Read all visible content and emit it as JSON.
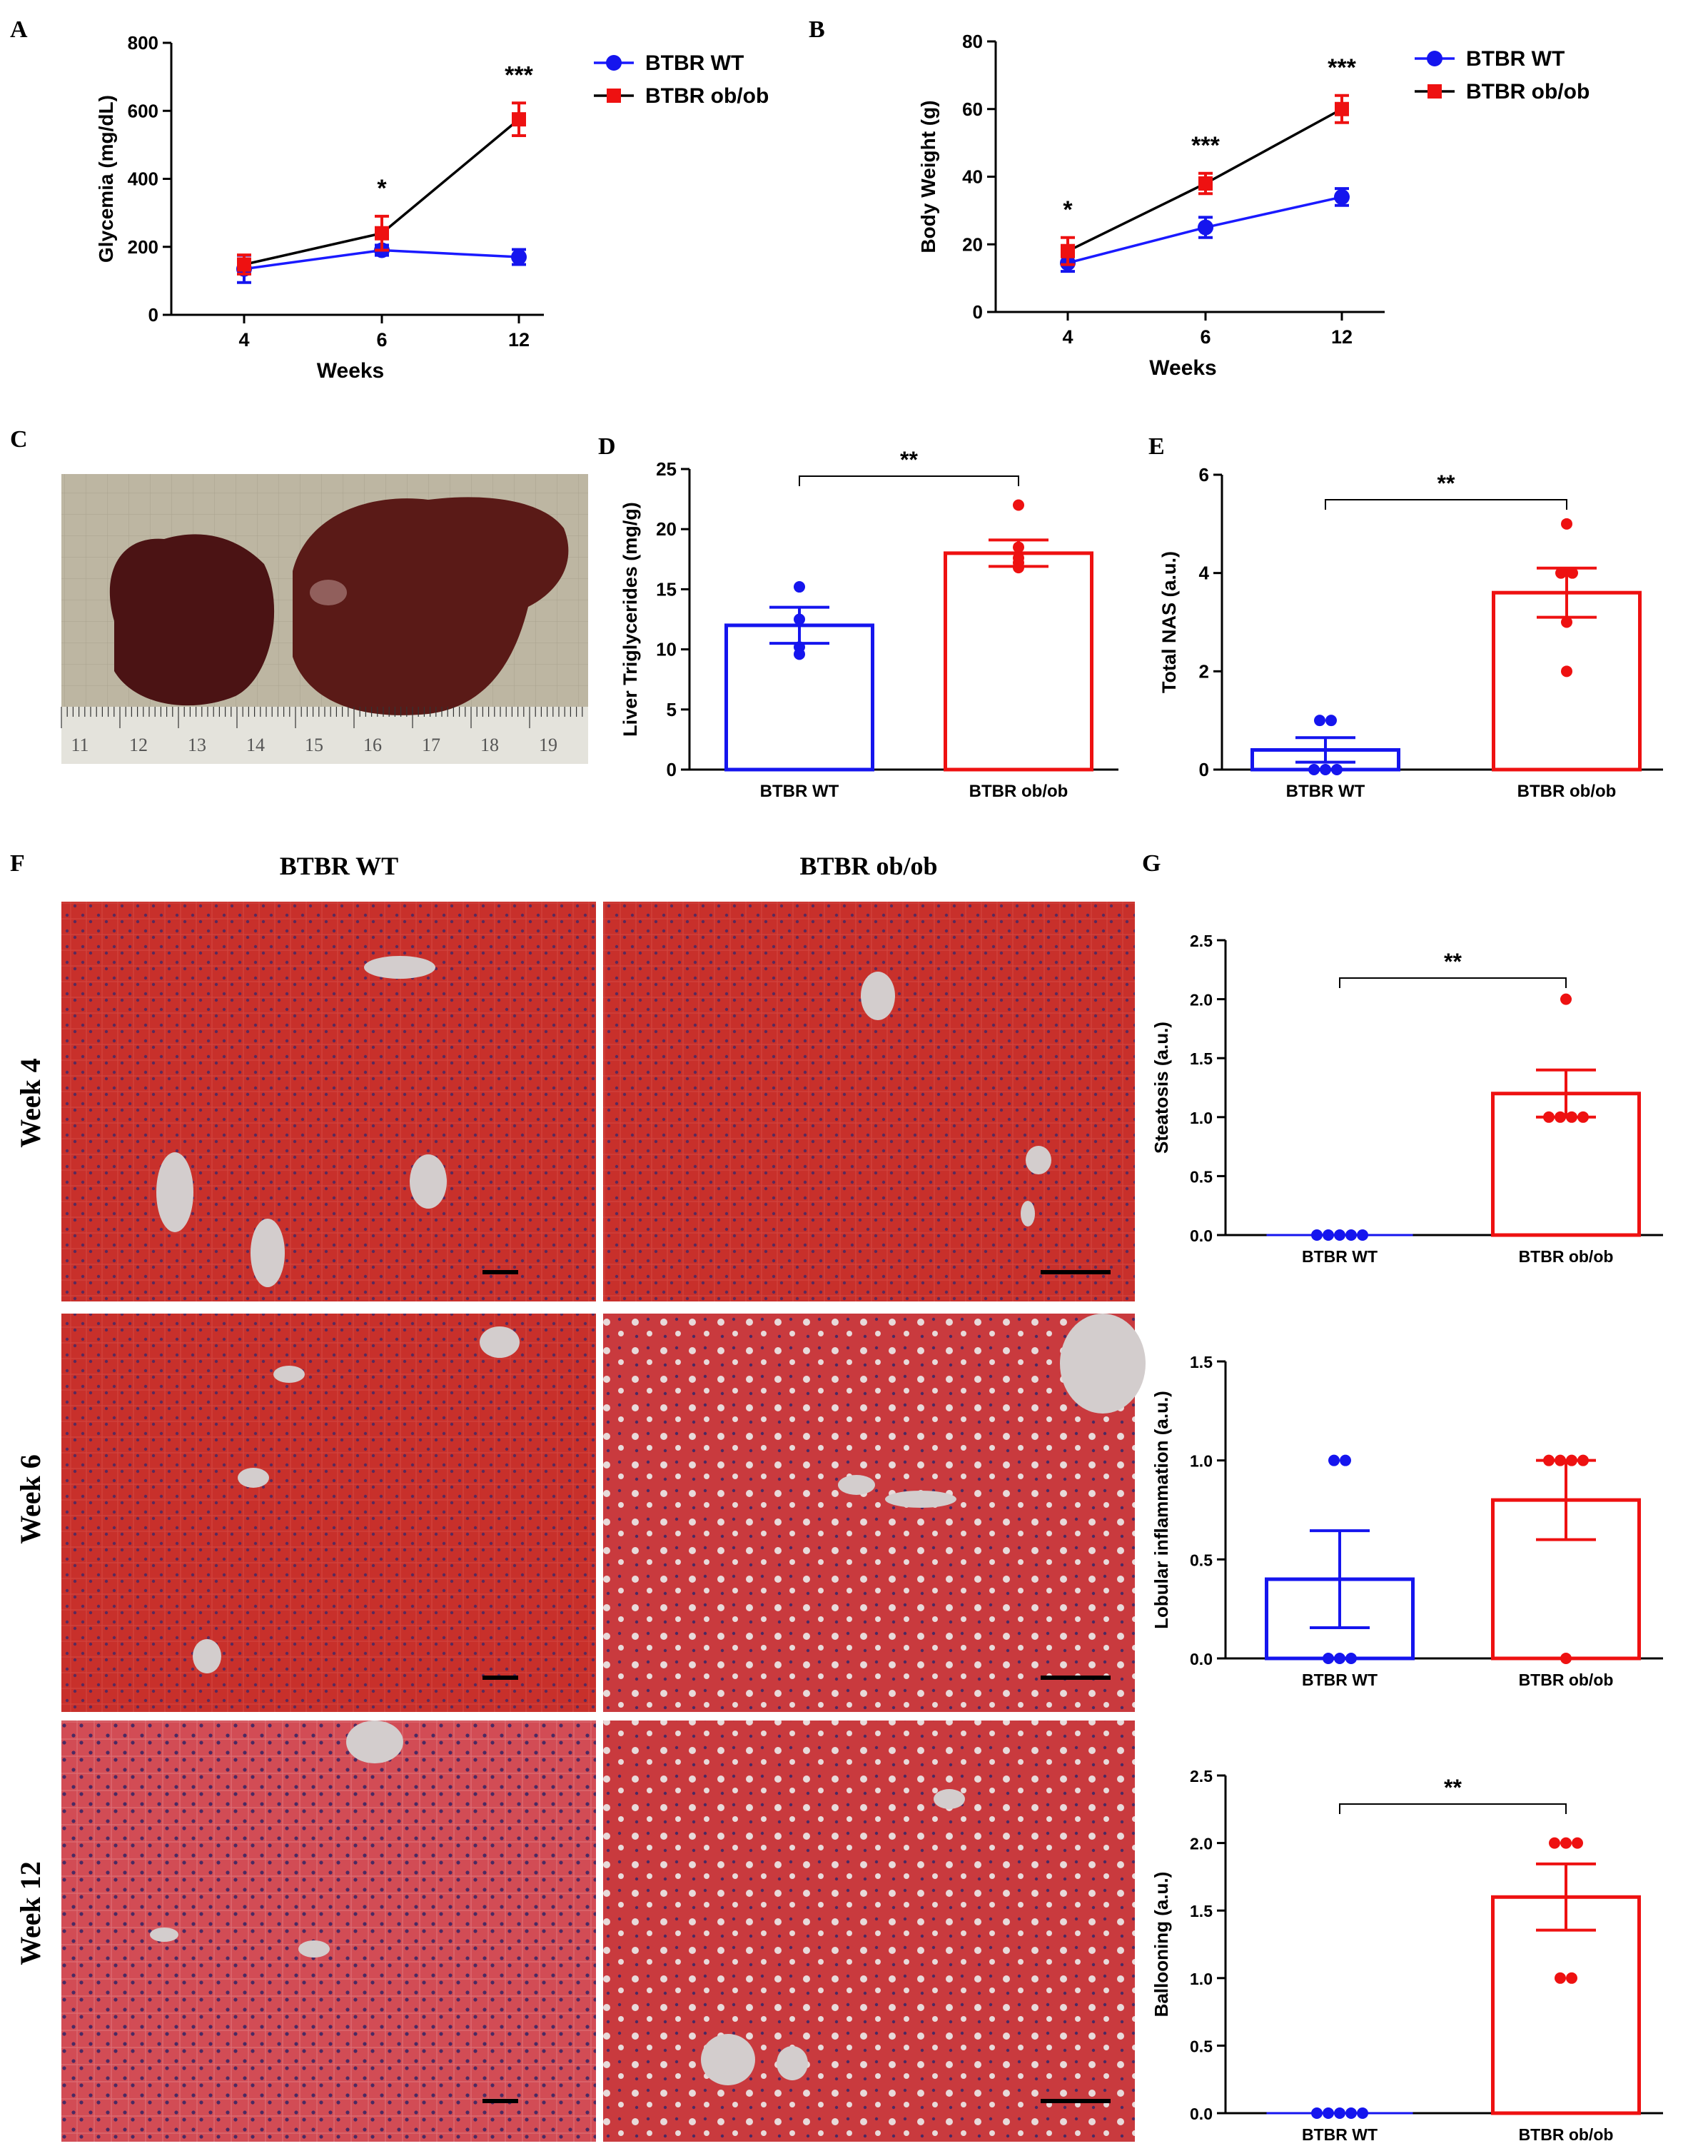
{
  "panel_letters": {
    "a": "A",
    "b": "B",
    "c": "C",
    "d": "D",
    "e": "E",
    "f": "F",
    "g": "G"
  },
  "colors": {
    "wt": "#1515ee",
    "ob": "#ee1111",
    "axis": "#000000",
    "tissue": "#c9322c",
    "vessel": "#d3cdcd"
  },
  "histology": {
    "col_wt": "BTBR WT",
    "col_ob": "BTBR ob/ob",
    "rows": [
      "Week 4",
      "Week 6",
      "Week 12"
    ]
  },
  "photo": {
    "ruler_numbers": [
      "11",
      "12",
      "13",
      "14",
      "15",
      "16",
      "17",
      "18",
      "19"
    ]
  },
  "chart_data": [
    {
      "id": "A",
      "type": "line",
      "xlabel": "Weeks",
      "ylabel": "Glycemia (mg/dL)",
      "categories": [
        "4",
        "6",
        "12"
      ],
      "ylim": [
        0,
        800
      ],
      "yticks": [
        0,
        200,
        400,
        600,
        800
      ],
      "series": [
        {
          "name": "BTBR WT",
          "values": [
            135,
            190,
            170
          ],
          "errors": [
            40,
            15,
            22
          ]
        },
        {
          "name": "BTBR ob/ob",
          "values": [
            148,
            240,
            575
          ],
          "errors": [
            28,
            50,
            48
          ]
        }
      ],
      "significance": [
        "",
        "*",
        "***"
      ],
      "legend": "top-right"
    },
    {
      "id": "B",
      "type": "line",
      "xlabel": "Weeks",
      "ylabel": "Body Weight (g)",
      "categories": [
        "4",
        "6",
        "12"
      ],
      "ylim": [
        0,
        80
      ],
      "yticks": [
        0,
        20,
        40,
        60,
        80
      ],
      "series": [
        {
          "name": "BTBR WT",
          "values": [
            14.5,
            25,
            34
          ],
          "errors": [
            2.5,
            3,
            2.5
          ]
        },
        {
          "name": "BTBR ob/ob",
          "values": [
            18,
            38,
            60
          ],
          "errors": [
            4,
            3,
            4
          ]
        }
      ],
      "significance": [
        "*",
        "***",
        "***"
      ],
      "legend": "top-right"
    },
    {
      "id": "D",
      "type": "bar",
      "ylabel": "Liver Triglycerides (mg/g)",
      "categories": [
        "BTBR WT",
        "BTBR ob/ob"
      ],
      "ylim": [
        0,
        25
      ],
      "yticks": [
        0,
        5,
        10,
        15,
        20,
        25
      ],
      "values": [
        12,
        18
      ],
      "errors": [
        1.5,
        1.1
      ],
      "points": [
        [
          15.2,
          12.5,
          10.2,
          9.6
        ],
        [
          22,
          18.5,
          17.2,
          16.8,
          17.6
        ]
      ],
      "significance": "**"
    },
    {
      "id": "E",
      "type": "bar",
      "ylabel": "Total NAS (a.u.)",
      "categories": [
        "BTBR WT",
        "BTBR ob/ob"
      ],
      "ylim": [
        0,
        6
      ],
      "yticks": [
        0,
        2,
        4,
        6
      ],
      "values": [
        0.4,
        3.6
      ],
      "errors": [
        0.25,
        0.5
      ],
      "points": [
        [
          1,
          1,
          0,
          0,
          0
        ],
        [
          5,
          4,
          4,
          3,
          2
        ]
      ],
      "significance": "**"
    },
    {
      "id": "G1",
      "type": "bar",
      "ylabel": "Steatosis (a.u.)",
      "categories": [
        "BTBR WT",
        "BTBR ob/ob"
      ],
      "ylim": [
        0,
        2.5
      ],
      "yticks": [
        "0.0",
        "0.5",
        "1.0",
        "1.5",
        "2.0",
        "2.5"
      ],
      "values": [
        0,
        1.2
      ],
      "errors": [
        0,
        0.2
      ],
      "points": [
        [
          0,
          0,
          0,
          0,
          0
        ],
        [
          2,
          1,
          1,
          1,
          1
        ]
      ],
      "significance": "**"
    },
    {
      "id": "G2",
      "type": "bar",
      "ylabel": "Lobular inflammation (a.u.)",
      "categories": [
        "BTBR WT",
        "BTBR ob/ob"
      ],
      "ylim": [
        0,
        1.5
      ],
      "yticks": [
        "0.0",
        "0.5",
        "1.0",
        "1.5"
      ],
      "values": [
        0.4,
        0.8
      ],
      "errors": [
        0.245,
        0.2
      ],
      "points": [
        [
          1,
          1,
          0,
          0,
          0
        ],
        [
          1,
          1,
          1,
          1,
          0
        ]
      ],
      "significance": ""
    },
    {
      "id": "G3",
      "type": "bar",
      "ylabel": "Ballooning (a.u.)",
      "categories": [
        "BTBR WT",
        "BTBR ob/ob"
      ],
      "ylim": [
        0,
        2.5
      ],
      "yticks": [
        "0.0",
        "0.5",
        "1.0",
        "1.5",
        "2.0",
        "2.5"
      ],
      "values": [
        0,
        1.6
      ],
      "errors": [
        0,
        0.245
      ],
      "points": [
        [
          0,
          0,
          0,
          0,
          0
        ],
        [
          2,
          2,
          2,
          1,
          1
        ]
      ],
      "significance": "**"
    }
  ]
}
